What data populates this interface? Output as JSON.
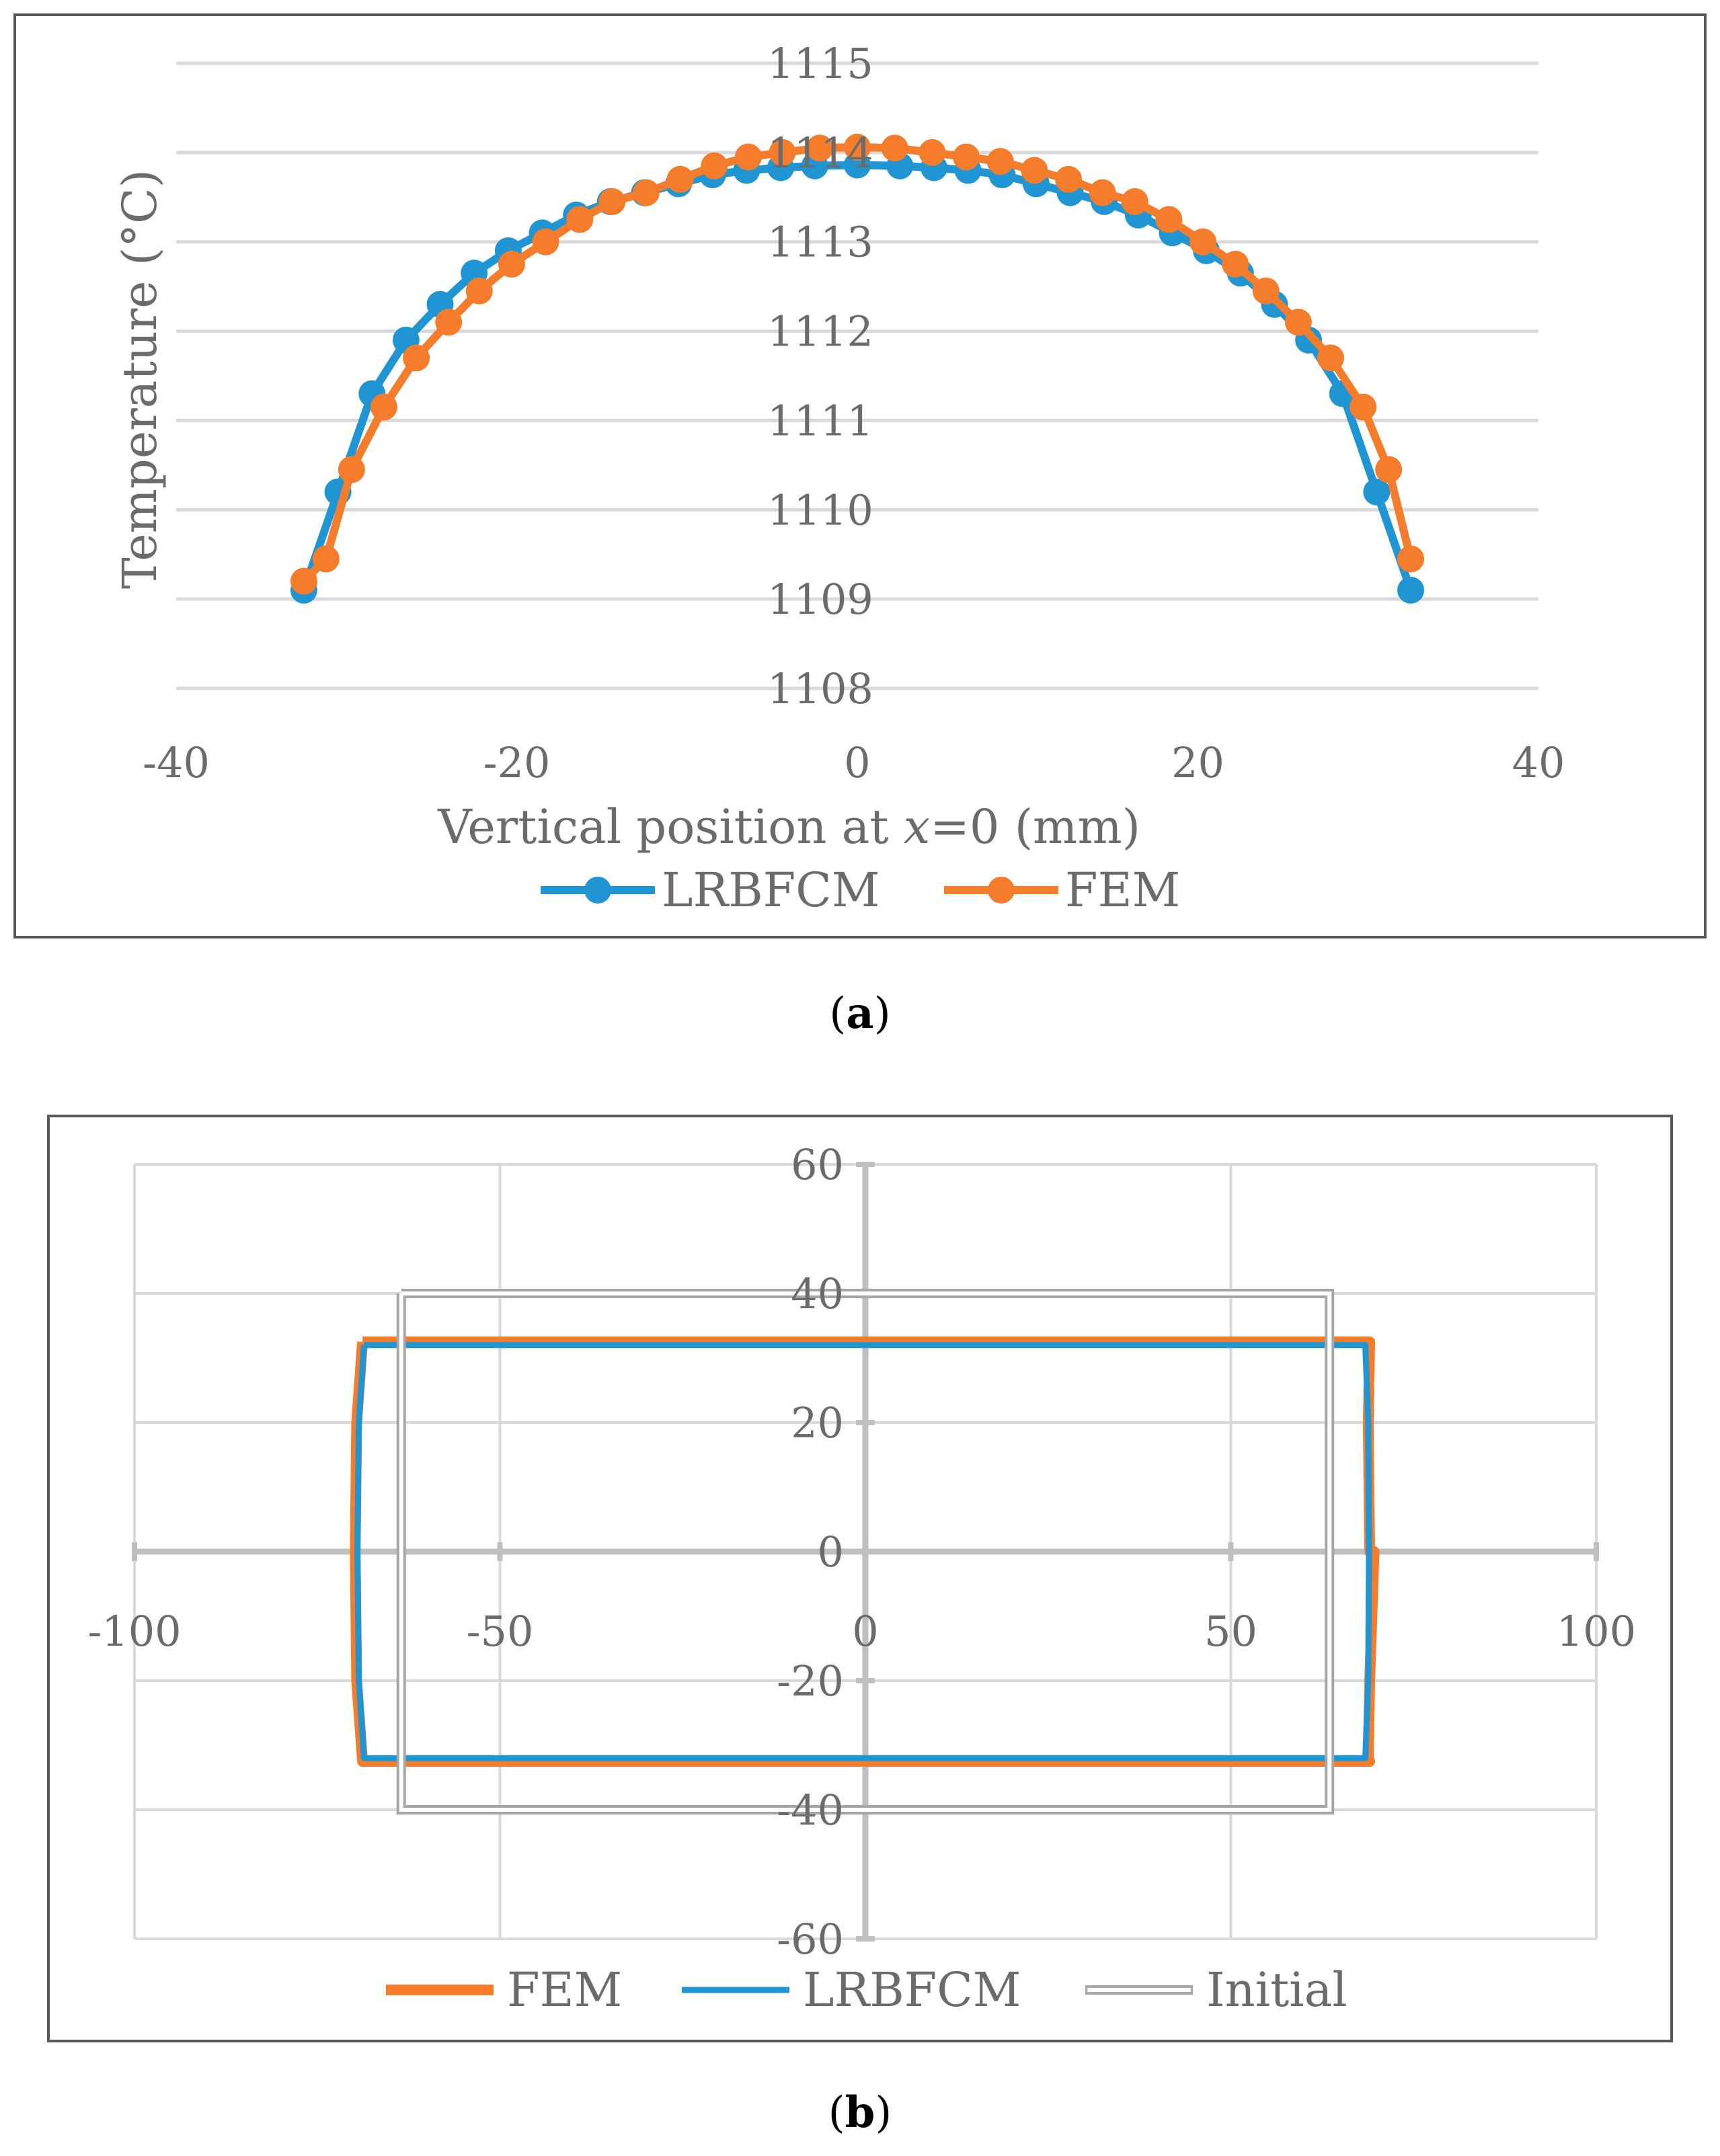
{
  "colors": {
    "lrbfcm": "#1f96d3",
    "fem": "#f57c2b",
    "initial": "#a6a6a6",
    "grid": "#d9d9d9",
    "axis": "#bfbfbf",
    "text": "#6b6b6b"
  },
  "captions": {
    "a_open": "(",
    "a_letter": "a",
    "a_close": ")",
    "b_open": "(",
    "b_letter": "b",
    "b_close": ")"
  },
  "chart_data": [
    {
      "id": "a",
      "type": "line",
      "xlabel_prefix": "Vertical position at ",
      "xlabel_var": "x",
      "xlabel_suffix": "=0 (mm)",
      "ylabel": "Temperature (°C)",
      "xlim": [
        -40,
        40
      ],
      "ylim": [
        1108,
        1115
      ],
      "xticks": [
        -40,
        -20,
        0,
        20,
        40
      ],
      "yticks": [
        1108,
        1109,
        1110,
        1111,
        1112,
        1113,
        1114,
        1115
      ],
      "legend_position": "bottom",
      "series": [
        {
          "name": "LRBFCM",
          "color": "#1f96d3",
          "marker": "circle",
          "x": [
            -32.5,
            -30.5,
            -28.5,
            -26.5,
            -24.5,
            -22.5,
            -20.5,
            -18.5,
            -16.5,
            -14.5,
            -12.5,
            -10.5,
            -8.5,
            -6.5,
            -4.5,
            -2.5,
            0,
            2.5,
            4.5,
            6.5,
            8.5,
            10.5,
            12.5,
            14.5,
            16.5,
            18.5,
            20.5,
            22.5,
            24.5,
            26.5,
            28.5,
            30.5,
            32.5
          ],
          "y": [
            1109.1,
            1110.2,
            1111.3,
            1111.9,
            1112.3,
            1112.65,
            1112.9,
            1113.1,
            1113.3,
            1113.45,
            1113.55,
            1113.65,
            1113.75,
            1113.8,
            1113.83,
            1113.85,
            1113.86,
            1113.85,
            1113.83,
            1113.8,
            1113.75,
            1113.65,
            1113.55,
            1113.45,
            1113.3,
            1113.1,
            1112.9,
            1112.65,
            1112.3,
            1111.9,
            1111.3,
            1110.2,
            1109.1
          ]
        },
        {
          "name": "FEM",
          "color": "#f57c2b",
          "marker": "circle",
          "x": [
            -32.5,
            -31.2,
            -29.7,
            -27.8,
            -25.9,
            -24.0,
            -22.2,
            -20.3,
            -18.3,
            -16.3,
            -14.4,
            -12.4,
            -10.4,
            -8.4,
            -6.4,
            -4.4,
            -2.2,
            0,
            2.2,
            4.4,
            6.4,
            8.4,
            10.4,
            12.4,
            14.4,
            16.3,
            18.3,
            20.3,
            22.2,
            24.0,
            25.9,
            27.8,
            29.7,
            31.2,
            32.5
          ],
          "y": [
            1109.2,
            1109.45,
            1110.45,
            1111.15,
            1111.7,
            1112.1,
            1112.45,
            1112.75,
            1113.0,
            1113.25,
            1113.45,
            1113.55,
            1113.7,
            1113.85,
            1113.95,
            1114.0,
            1114.05,
            1114.06,
            1114.05,
            1114.0,
            1113.95,
            1113.9,
            1113.8,
            1113.7,
            1113.55,
            1113.45,
            1113.25,
            1113.0,
            1112.75,
            1112.45,
            1112.1,
            1111.7,
            1111.15,
            1110.45,
            1109.45
          ]
        }
      ]
    },
    {
      "id": "b",
      "type": "line",
      "xlim": [
        -100,
        100
      ],
      "ylim": [
        -60,
        60
      ],
      "xticks": [
        -100,
        -50,
        0,
        50,
        100
      ],
      "yticks": [
        -60,
        -40,
        -20,
        0,
        20,
        40,
        60
      ],
      "legend_position": "bottom",
      "series": [
        {
          "name": "FEM",
          "color": "#f57c2b",
          "style": "thick",
          "x": [
            -68.8,
            69.0,
            68.8,
            69.0,
            69.6,
            69.0,
            68.8,
            69.0,
            -68.8,
            -69.6,
            -69.8,
            -69.6,
            -68.8
          ],
          "y": [
            32.5,
            32.5,
            20,
            0,
            0,
            -20,
            -32.5,
            -32.5,
            -32.5,
            -20,
            0,
            20,
            32.5
          ]
        },
        {
          "name": "LRBFCM",
          "color": "#1f96d3",
          "style": "thin",
          "x": [
            -68.6,
            68.4,
            68.8,
            68.9,
            68.8,
            68.4,
            -68.6,
            -69.3,
            -69.5,
            -69.3,
            -68.6
          ],
          "y": [
            32,
            32,
            20,
            0,
            -20,
            -32,
            -32,
            -20,
            0,
            20,
            32
          ]
        },
        {
          "name": "Initial",
          "color": "#a6a6a6",
          "style": "double",
          "x": [
            -63.5,
            63.5,
            63.5,
            -63.5,
            -63.5
          ],
          "y": [
            40,
            40,
            -40,
            -40,
            40
          ]
        }
      ]
    }
  ]
}
